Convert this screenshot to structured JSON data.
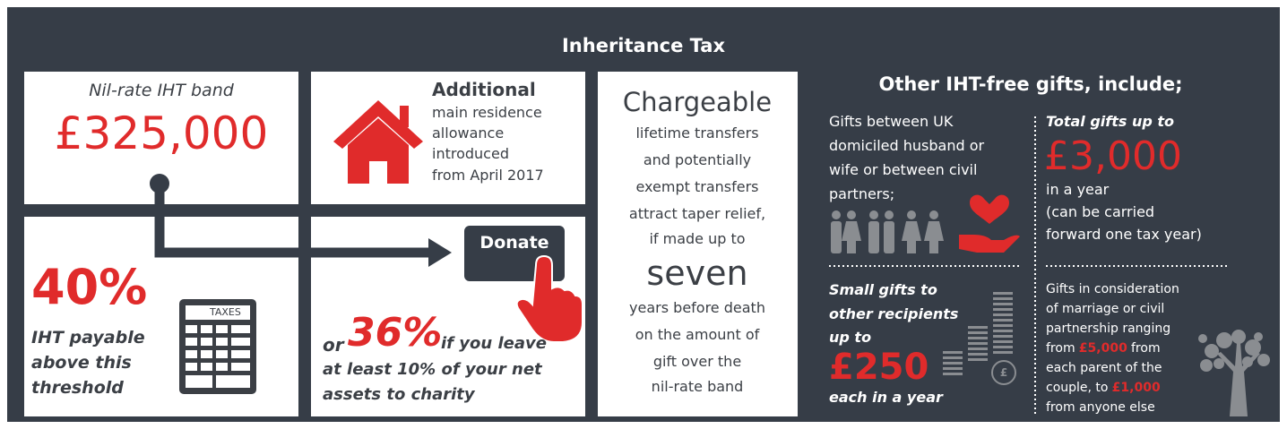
{
  "title": "Inheritance Tax",
  "nil_rate": {
    "label": "Nil-rate IHT band",
    "amount": "£325,000"
  },
  "residence": {
    "heading": "Additional",
    "lines": [
      "main residence",
      "allowance",
      "introduced",
      "from April 2017"
    ]
  },
  "rate": {
    "value": "40%",
    "lines": [
      "IHT payable",
      "above this",
      "threshold"
    ],
    "calculator_label": "TAXES"
  },
  "charity": {
    "button": "Donate",
    "prefix": "or",
    "value": "36%",
    "lines": [
      "if you leave",
      "at least 10% of your net",
      "assets to charity"
    ]
  },
  "chargeable": {
    "heading": "Chargeable",
    "lines_before": [
      "lifetime transfers",
      "and potentially",
      "exempt transfers",
      "attract taper relief,",
      "if made up to"
    ],
    "emphasis": "seven",
    "lines_after": [
      "years before death",
      "on the amount of",
      "gift over the",
      "nil-rate band"
    ]
  },
  "gifts": {
    "title": "Other IHT-free gifts, include;",
    "spouse": {
      "lines": [
        "Gifts between UK",
        "domiciled husband or",
        "wife or between civil",
        "partners;"
      ]
    },
    "annual": {
      "label": "Total gifts up to",
      "amount": "£3,000",
      "lines": [
        "in a year",
        "(can be carried",
        "forward one tax year)"
      ]
    },
    "small": {
      "lines": [
        "Small gifts to",
        "other recipients",
        "up to"
      ],
      "amount": "£250",
      "suffix": "each in a year",
      "coin_symbol": "£"
    },
    "marriage": {
      "lines": [
        [
          "Gifts in consideration"
        ],
        [
          "of marriage or civil"
        ],
        [
          "partnership ranging"
        ],
        [
          "from",
          "£5,000",
          "from"
        ],
        [
          "each parent of the"
        ],
        [
          "couple, to",
          "£1,000"
        ],
        [
          "from anyone else"
        ]
      ]
    }
  }
}
